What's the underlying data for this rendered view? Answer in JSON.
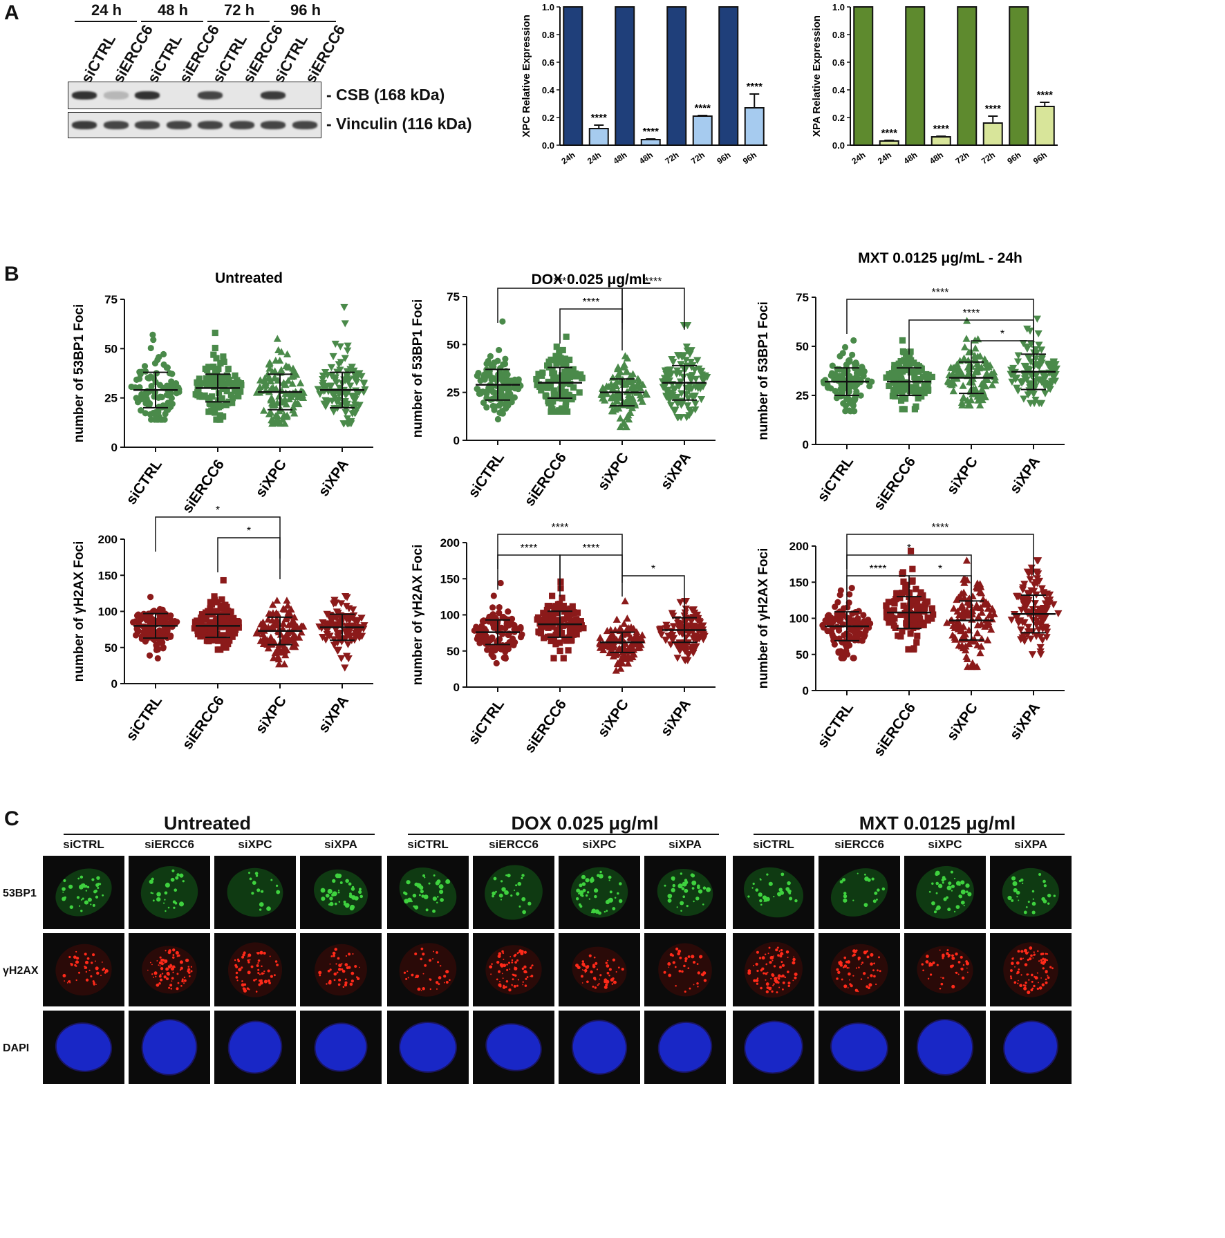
{
  "panels": {
    "A": "A",
    "B": "B",
    "C": "C"
  },
  "western": {
    "times": [
      "24 h",
      "48 h",
      "72 h",
      "96 h"
    ],
    "lanes": [
      "siCTRL",
      "siERCC6",
      "siCTRL",
      "siERCC6",
      "siCTRL",
      "siERCC6",
      "siCTRL",
      "siERCC6"
    ],
    "row1_label": "- CSB (168 kDa)",
    "row2_label": "- Vinculin (116 kDa)",
    "row1_intensity": [
      0.95,
      0.25,
      0.95,
      0.05,
      0.85,
      0.05,
      0.9,
      0.05
    ],
    "row2_intensity": [
      0.9,
      0.85,
      0.85,
      0.85,
      0.85,
      0.85,
      0.85,
      0.85
    ]
  },
  "chart_data": [
    {
      "type": "bar",
      "id": "xpc",
      "ylabel": "XPC  Relative Expression",
      "ylim": [
        0,
        1.0
      ],
      "yticks": [
        "0.0",
        "0.2",
        "0.4",
        "0.6",
        "0.8",
        "1.0"
      ],
      "categories": [
        "24h",
        "24h",
        "48h",
        "48h",
        "72h",
        "72h",
        "96h",
        "96h"
      ],
      "values": [
        1.0,
        0.12,
        1.0,
        0.04,
        1.0,
        0.21,
        1.0,
        0.27
      ],
      "errors": [
        0,
        0.025,
        0,
        0.005,
        0,
        0.005,
        0,
        0.1
      ],
      "annotations": [
        "",
        "****",
        "",
        "****",
        "",
        "****",
        "",
        "****"
      ],
      "colors": [
        "#1f3f7a",
        "#a6cbef",
        "#1f3f7a",
        "#a6cbef",
        "#1f3f7a",
        "#a6cbef",
        "#1f3f7a",
        "#a6cbef"
      ]
    },
    {
      "type": "bar",
      "id": "xpa",
      "ylabel": "XPA  Relative Expression",
      "ylim": [
        0,
        1.0
      ],
      "yticks": [
        "0.0",
        "0.2",
        "0.4",
        "0.6",
        "0.8",
        "1.0"
      ],
      "categories": [
        "24h",
        "24h",
        "48h",
        "48h",
        "72h",
        "72h",
        "96h",
        "96h"
      ],
      "values": [
        1.0,
        0.03,
        1.0,
        0.06,
        1.0,
        0.16,
        1.0,
        0.28
      ],
      "errors": [
        0,
        0.005,
        0,
        0.005,
        0,
        0.05,
        0,
        0.03
      ],
      "annotations": [
        "",
        "****",
        "",
        "****",
        "",
        "****",
        "",
        "****"
      ],
      "colors": [
        "#5e8a2e",
        "#d8e59a",
        "#5e8a2e",
        "#d8e59a",
        "#5e8a2e",
        "#d8e59a",
        "#5e8a2e",
        "#d8e59a"
      ]
    },
    {
      "type": "scatter",
      "id": "b1",
      "title": "Untreated",
      "ylabel": "number of 53BP1 Foci",
      "ylim": [
        0,
        75
      ],
      "yticks": [
        0,
        25,
        50,
        75
      ],
      "categories": [
        "siCTRL",
        "siERCC6",
        "siXPC",
        "siXPA"
      ],
      "means": [
        29,
        30,
        28,
        29
      ],
      "sd": [
        9,
        7,
        9,
        9
      ],
      "mins": [
        14,
        14,
        12,
        12
      ],
      "maxs": [
        57,
        58,
        55,
        71
      ],
      "color": "#4a8a4a",
      "brackets": []
    },
    {
      "type": "scatter",
      "id": "b2",
      "title": "DOX 0.025 μg/mL",
      "ylabel": "number of 53BP1 Foci",
      "ylim": [
        0,
        75
      ],
      "yticks": [
        0,
        25,
        50,
        75
      ],
      "categories": [
        "siCTRL",
        "siERCC6",
        "siXPC",
        "siXPA"
      ],
      "means": [
        29,
        30,
        25,
        30
      ],
      "sd": [
        8,
        8,
        7,
        9
      ],
      "mins": [
        11,
        15,
        7,
        12
      ],
      "maxs": [
        62,
        54,
        44,
        60
      ],
      "color": "#4a8a4a",
      "brackets": [
        {
          "from": 0,
          "to": 2,
          "level": 2,
          "label": "***"
        },
        {
          "from": 2,
          "to": 3,
          "level": 2,
          "label": "****"
        },
        {
          "from": 1,
          "to": 2,
          "level": 1,
          "label": "****"
        }
      ]
    },
    {
      "type": "scatter",
      "id": "b3",
      "title": "MXT 0.0125 μg/mL - 24h",
      "ylabel": "number of 53BP1 Foci",
      "ylim": [
        0,
        75
      ],
      "yticks": [
        0,
        25,
        50,
        75
      ],
      "categories": [
        "siCTRL",
        "siERCC6",
        "siXPC",
        "siXPA"
      ],
      "means": [
        32,
        32,
        34,
        37
      ],
      "sd": [
        7,
        7,
        8,
        9
      ],
      "mins": [
        17,
        18,
        20,
        21
      ],
      "maxs": [
        53,
        53,
        63,
        64
      ],
      "color": "#4a8a4a",
      "brackets": [
        {
          "from": 0,
          "to": 3,
          "level": 3,
          "label": "****"
        },
        {
          "from": 1,
          "to": 3,
          "level": 2,
          "label": "****"
        },
        {
          "from": 2,
          "to": 3,
          "level": 1,
          "label": "*"
        }
      ]
    },
    {
      "type": "scatter",
      "id": "b4",
      "title": "",
      "ylabel": "number of γH2AX Foci",
      "ylim": [
        0,
        200
      ],
      "yticks": [
        0,
        50,
        100,
        150,
        200
      ],
      "categories": [
        "siCTRL",
        "siERCC6",
        "siXPC",
        "siXPA"
      ],
      "means": [
        80,
        80,
        73,
        78
      ],
      "sd": [
        17,
        16,
        19,
        18
      ],
      "mins": [
        35,
        47,
        27,
        22
      ],
      "maxs": [
        120,
        143,
        115,
        121
      ],
      "color": "#8b1a1a",
      "brackets": [
        {
          "from": 0,
          "to": 2,
          "level": 2,
          "label": "*"
        },
        {
          "from": 1,
          "to": 2,
          "level": 1,
          "label": "*"
        }
      ]
    },
    {
      "type": "scatter",
      "id": "b5",
      "title": "",
      "ylabel": "number of γH2AX Foci",
      "ylim": [
        0,
        200
      ],
      "yticks": [
        0,
        50,
        100,
        150,
        200
      ],
      "categories": [
        "siCTRL",
        "siERCC6",
        "siXPC",
        "siXPA"
      ],
      "means": [
        76,
        87,
        62,
        79
      ],
      "sd": [
        17,
        18,
        14,
        17
      ],
      "mins": [
        33,
        40,
        23,
        37
      ],
      "maxs": [
        144,
        146,
        119,
        119
      ],
      "color": "#8b1a1a",
      "brackets": [
        {
          "from": 0,
          "to": 2,
          "level": 2,
          "label": "****"
        },
        {
          "from": 0,
          "to": 1,
          "level": 1,
          "label": "****"
        },
        {
          "from": 1,
          "to": 2,
          "level": 1,
          "label": "****"
        },
        {
          "from": 2,
          "to": 3,
          "level": 0,
          "label": "*"
        }
      ]
    },
    {
      "type": "scatter",
      "id": "b6",
      "title": "",
      "ylabel": "number of γH2AX Foci",
      "ylim": [
        0,
        200
      ],
      "yticks": [
        0,
        50,
        100,
        150,
        200
      ],
      "categories": [
        "siCTRL",
        "siERCC6",
        "siXPC",
        "siXPA"
      ],
      "means": [
        89,
        108,
        97,
        106
      ],
      "sd": [
        20,
        22,
        27,
        26
      ],
      "mins": [
        45,
        57,
        33,
        50
      ],
      "maxs": [
        142,
        193,
        180,
        180
      ],
      "color": "#8b1a1a",
      "brackets": [
        {
          "from": 0,
          "to": 3,
          "level": 3,
          "label": "****"
        },
        {
          "from": 0,
          "to": 2,
          "level": 2,
          "label": "*"
        },
        {
          "from": 0,
          "to": 1,
          "level": 1,
          "label": "****"
        },
        {
          "from": 1,
          "to": 2,
          "level": 1,
          "label": "*"
        }
      ]
    }
  ],
  "micro": {
    "groups": [
      {
        "title": "Untreated"
      },
      {
        "title": "DOX 0.025 μg/ml"
      },
      {
        "title": "MXT 0.0125 μg/ml"
      }
    ],
    "columns": [
      "siCTRL",
      "siERCC6",
      "siXPC",
      "siXPA"
    ],
    "rows": [
      "53BP1",
      "γH2AX",
      "DAPI"
    ],
    "colors": {
      "green": "#3fd23f",
      "red": "#ff2a1a",
      "blue": "#1a2ad8"
    }
  }
}
